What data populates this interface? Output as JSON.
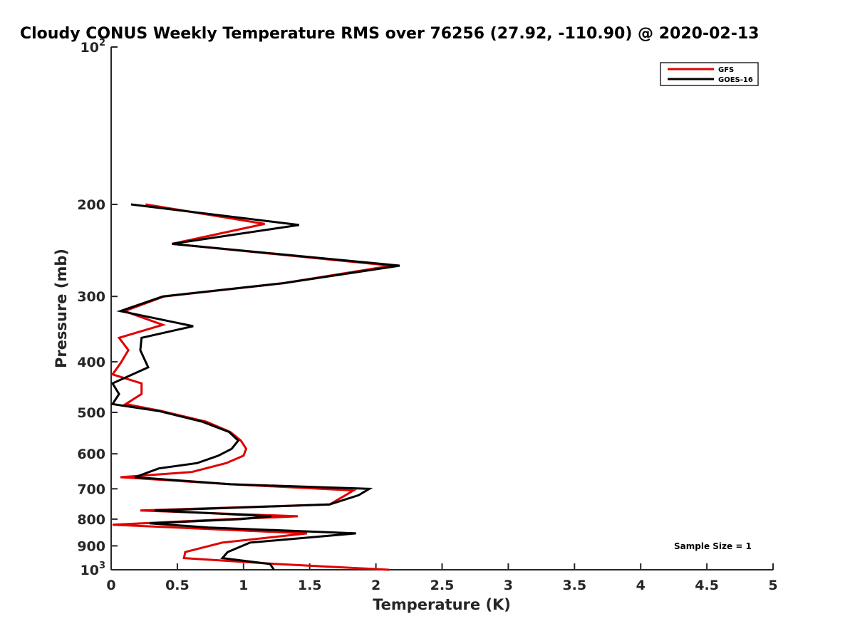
{
  "chart_data": {
    "type": "line",
    "title": "Cloudy CONUS Weekly Temperature RMS over 76256 (27.92, -110.90) @ 2020-02-13",
    "xlabel": "Temperature (K)",
    "ylabel": "Pressure (mb)",
    "xlim": [
      0,
      5
    ],
    "ylim": [
      100,
      1000
    ],
    "y_scale": "log",
    "y_reversed": true,
    "grid": false,
    "legend_position": "top-right",
    "x_ticks": [
      "0",
      "0.5",
      "1",
      "1.5",
      "2",
      "2.5",
      "3",
      "3.5",
      "4",
      "4.5",
      "5"
    ],
    "y_ticks": [
      {
        "value": 100,
        "base": "10",
        "exp": "2"
      },
      {
        "value": 200,
        "label": "200"
      },
      {
        "value": 300,
        "label": "300"
      },
      {
        "value": 400,
        "label": "400"
      },
      {
        "value": 500,
        "label": "500"
      },
      {
        "value": 600,
        "label": "600"
      },
      {
        "value": 700,
        "label": "700"
      },
      {
        "value": 800,
        "label": "800"
      },
      {
        "value": 900,
        "label": "900"
      },
      {
        "value": 1000,
        "base": "10",
        "exp": "3"
      }
    ],
    "annotation": "Sample Size = 1",
    "series": [
      {
        "name": "GFS",
        "color": "#e00000",
        "points": [
          [
            0.26,
            200
          ],
          [
            1.16,
            218
          ],
          [
            0.46,
            238
          ],
          [
            2.12,
            262
          ],
          [
            1.3,
            283
          ],
          [
            0.4,
            300
          ],
          [
            0.1,
            320
          ],
          [
            0.39,
            340
          ],
          [
            0.06,
            360
          ],
          [
            0.13,
            380
          ],
          [
            0.07,
            403
          ],
          [
            0.01,
            423
          ],
          [
            0.23,
            440
          ],
          [
            0.23,
            461
          ],
          [
            0.11,
            482
          ],
          [
            0.38,
            497
          ],
          [
            0.72,
            521
          ],
          [
            0.9,
            545
          ],
          [
            0.98,
            566
          ],
          [
            1.02,
            587
          ],
          [
            1.0,
            605
          ],
          [
            0.87,
            625
          ],
          [
            0.61,
            650
          ],
          [
            0.07,
            665
          ],
          [
            0.9,
            686
          ],
          [
            1.83,
            705
          ],
          [
            1.77,
            720
          ],
          [
            1.65,
            750
          ],
          [
            0.22,
            770
          ],
          [
            1.41,
            790
          ],
          [
            0.9,
            800
          ],
          [
            0.01,
            820
          ],
          [
            1.48,
            852
          ],
          [
            0.84,
            887
          ],
          [
            0.56,
            925
          ],
          [
            0.55,
            950
          ],
          [
            1.25,
            975
          ],
          [
            2.1,
            1000
          ]
        ]
      },
      {
        "name": "GOES-16",
        "color": "#000000",
        "points": [
          [
            0.15,
            200
          ],
          [
            1.42,
            219
          ],
          [
            0.46,
            238
          ],
          [
            2.18,
            262
          ],
          [
            1.3,
            283
          ],
          [
            0.39,
            300
          ],
          [
            0.07,
            320
          ],
          [
            0.62,
            342
          ],
          [
            0.23,
            360
          ],
          [
            0.22,
            380
          ],
          [
            0.28,
            410
          ],
          [
            0.01,
            440
          ],
          [
            0.06,
            461
          ],
          [
            0.01,
            482
          ],
          [
            0.36,
            497
          ],
          [
            0.69,
            521
          ],
          [
            0.89,
            545
          ],
          [
            0.96,
            566
          ],
          [
            0.91,
            587
          ],
          [
            0.81,
            605
          ],
          [
            0.65,
            625
          ],
          [
            0.36,
            640
          ],
          [
            0.18,
            665
          ],
          [
            0.9,
            686
          ],
          [
            1.95,
            700
          ],
          [
            1.87,
            720
          ],
          [
            1.65,
            750
          ],
          [
            0.33,
            770
          ],
          [
            1.21,
            790
          ],
          [
            0.98,
            800
          ],
          [
            0.29,
            815
          ],
          [
            0.73,
            830
          ],
          [
            1.85,
            852
          ],
          [
            1.05,
            887
          ],
          [
            0.88,
            925
          ],
          [
            0.84,
            950
          ],
          [
            1.2,
            975
          ],
          [
            1.23,
            1000
          ]
        ]
      }
    ]
  }
}
